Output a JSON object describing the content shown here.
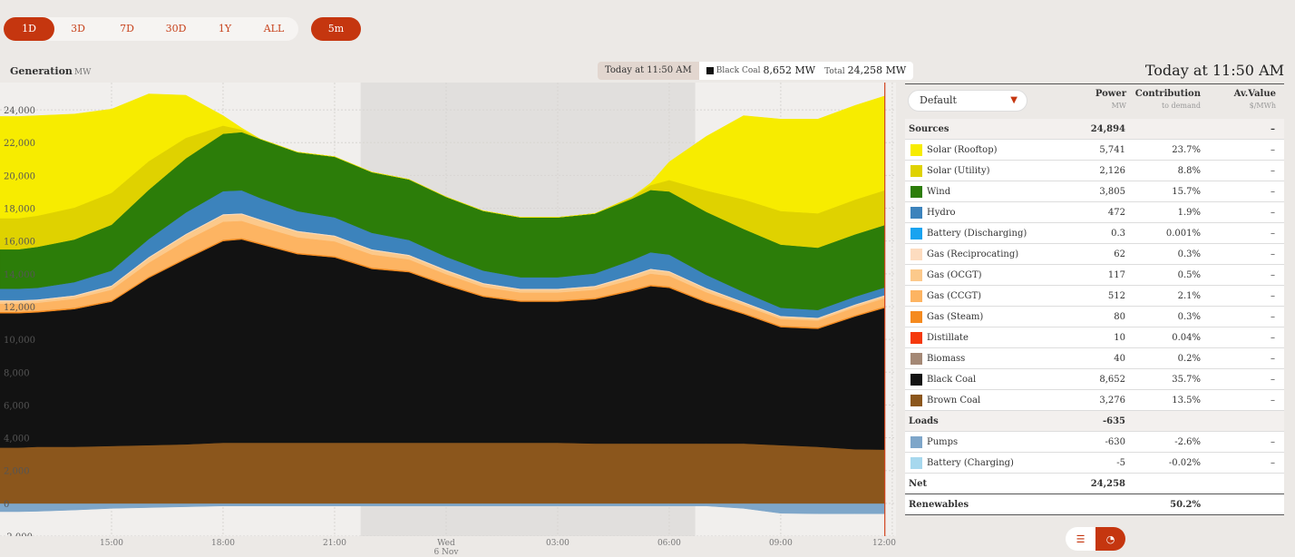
{
  "ranges": [
    "1D",
    "3D",
    "7D",
    "30D",
    "1Y",
    "ALL"
  ],
  "active_range": "1D",
  "interval": "5m",
  "chart_title": "Generation",
  "chart_unit": "MW",
  "hover": {
    "time": "Today at 11:50 AM",
    "fuel": "Black Coal",
    "fuel_value": "8,652 MW",
    "total_label": "Total",
    "total_value": "24,258 MW"
  },
  "chart_data": {
    "type": "area",
    "stacked": true,
    "ylim": [
      -2000,
      25000
    ],
    "y_ticks": [
      -2000,
      0,
      2000,
      4000,
      6000,
      8000,
      10000,
      12000,
      14000,
      16000,
      18000,
      20000,
      22000,
      24000
    ],
    "y_tick_labels": [
      "-2,000",
      "0",
      "2,000",
      "4,000",
      "6,000",
      "8,000",
      "10,000",
      "12,000",
      "14,000",
      "16,000",
      "18,000",
      "20,000",
      "22,000",
      "24,000"
    ],
    "x_hours": [
      12.0,
      12.5,
      13.0,
      14.0,
      15.0,
      16.0,
      17.0,
      18.0,
      18.5,
      19.0,
      20.0,
      21.0,
      22.0,
      23.0,
      24.0,
      25.0,
      26.0,
      27.0,
      28.0,
      29.0,
      29.5,
      30.0,
      31.0,
      32.0,
      33.0,
      34.0,
      35.0,
      35.8
    ],
    "x_tick_hours": [
      15,
      18,
      21,
      24,
      27,
      30,
      33,
      36
    ],
    "x_tick_labels": [
      "15:00",
      "18:00",
      "21:00",
      "Wed",
      "03:00",
      "06:00",
      "09:00",
      "12:00"
    ],
    "x_tick_sublabels": [
      "",
      "",
      "",
      "6 Nov",
      "",
      "",
      "",
      ""
    ],
    "shaded_night": [
      21.7,
      30.7
    ],
    "cursor_hour": 35.8,
    "series": [
      {
        "name": "Battery (Charging)",
        "color": "#a7d8ee",
        "values": [
          -5,
          -5,
          -5,
          -5,
          -5,
          -5,
          -5,
          -5,
          -5,
          -5,
          -5,
          -5,
          -5,
          -5,
          -5,
          -5,
          -5,
          -5,
          -5,
          -5,
          -5,
          -5,
          -5,
          -5,
          -5,
          -5,
          -5,
          -5
        ]
      },
      {
        "name": "Pumps",
        "color": "#7ea6c9",
        "values": [
          -500,
          -500,
          -480,
          -400,
          -300,
          -250,
          -200,
          -150,
          -150,
          -150,
          -150,
          -150,
          -150,
          -150,
          -150,
          -150,
          -150,
          -150,
          -150,
          -150,
          -150,
          -150,
          -150,
          -300,
          -600,
          -630,
          -630,
          -630
        ]
      },
      {
        "name": "Brown Coal",
        "color": "#8b561c",
        "values": [
          3400,
          3400,
          3450,
          3450,
          3500,
          3550,
          3600,
          3700,
          3700,
          3700,
          3700,
          3700,
          3700,
          3700,
          3700,
          3700,
          3700,
          3700,
          3650,
          3650,
          3650,
          3650,
          3650,
          3650,
          3550,
          3450,
          3300,
          3276
        ]
      },
      {
        "name": "Black Coal",
        "color": "#121212",
        "values": [
          8200,
          8200,
          8200,
          8400,
          8800,
          10200,
          11300,
          12300,
          12400,
          12100,
          11500,
          11300,
          10600,
          10400,
          9600,
          8900,
          8600,
          8600,
          8800,
          9300,
          9600,
          9500,
          8600,
          7900,
          7200,
          7200,
          8100,
          8652
        ]
      },
      {
        "name": "Gas (Steam)",
        "color": "#f58a1f",
        "values": [
          80,
          80,
          80,
          80,
          80,
          80,
          80,
          80,
          80,
          80,
          80,
          80,
          80,
          80,
          80,
          80,
          80,
          80,
          80,
          80,
          80,
          80,
          80,
          80,
          80,
          80,
          80,
          80
        ]
      },
      {
        "name": "Gas (CCGT)",
        "color": "#fdb462",
        "values": [
          500,
          500,
          500,
          550,
          650,
          850,
          1050,
          1100,
          1050,
          1000,
          950,
          900,
          800,
          700,
          600,
          520,
          480,
          480,
          500,
          620,
          680,
          650,
          550,
          450,
          420,
          420,
          480,
          512
        ]
      },
      {
        "name": "Gas (OCGT)",
        "color": "#fcc98b",
        "values": [
          150,
          150,
          150,
          150,
          200,
          280,
          350,
          400,
          400,
          380,
          330,
          300,
          260,
          220,
          200,
          180,
          170,
          170,
          180,
          220,
          240,
          230,
          190,
          150,
          120,
          110,
          115,
          117
        ]
      },
      {
        "name": "Gas (Reciprocating)",
        "color": "#fddcbf",
        "values": [
          62,
          62,
          62,
          62,
          62,
          62,
          62,
          62,
          62,
          62,
          62,
          62,
          62,
          62,
          62,
          62,
          62,
          62,
          62,
          62,
          62,
          62,
          62,
          62,
          62,
          62,
          62,
          62
        ]
      },
      {
        "name": "Hydro",
        "color": "#3c83bc",
        "values": [
          700,
          700,
          700,
          800,
          900,
          1100,
          1300,
          1400,
          1400,
          1300,
          1200,
          1100,
          1000,
          900,
          800,
          750,
          700,
          700,
          750,
          900,
          1000,
          1000,
          800,
          600,
          500,
          470,
          470,
          472
        ]
      },
      {
        "name": "Wind",
        "color": "#2c7d09",
        "values": [
          2400,
          2400,
          2500,
          2600,
          2800,
          3000,
          3300,
          3500,
          3550,
          3600,
          3600,
          3700,
          3700,
          3700,
          3650,
          3650,
          3650,
          3650,
          3650,
          3750,
          3800,
          3850,
          3850,
          3850,
          3850,
          3800,
          3800,
          3805
        ]
      },
      {
        "name": "Solar (Utility)",
        "color": "#dfd200",
        "values": [
          1900,
          1900,
          1900,
          1950,
          1950,
          1750,
          1250,
          500,
          150,
          0,
          0,
          0,
          0,
          0,
          0,
          0,
          0,
          0,
          0,
          100,
          300,
          700,
          1300,
          1800,
          2050,
          2100,
          2120,
          2126
        ]
      },
      {
        "name": "Solar (Rooftop)",
        "color": "#f7ec00",
        "values": [
          6200,
          6200,
          6100,
          5700,
          5100,
          4100,
          2600,
          600,
          100,
          0,
          0,
          0,
          0,
          0,
          0,
          0,
          0,
          0,
          0,
          0,
          120,
          1100,
          3300,
          5100,
          5600,
          5740,
          5741,
          5741
        ]
      }
    ]
  },
  "table": {
    "title": "Today at 11:50 AM",
    "dropdown": "Default",
    "columns": [
      {
        "label": "Power",
        "sub": "MW"
      },
      {
        "label": "Contribution",
        "sub": "to demand"
      },
      {
        "label": "Av.Value",
        "sub": "$/MWh"
      }
    ],
    "sources_label": "Sources",
    "sources_total": "24,894",
    "sources_av": "–",
    "sources": [
      {
        "name": "Solar (Rooftop)",
        "color": "#f7ec00",
        "power": "5,741",
        "contrib": "23.7%",
        "av": "–"
      },
      {
        "name": "Solar (Utility)",
        "color": "#dfd200",
        "power": "2,126",
        "contrib": "8.8%",
        "av": "–"
      },
      {
        "name": "Wind",
        "color": "#2c7d09",
        "power": "3,805",
        "contrib": "15.7%",
        "av": "–"
      },
      {
        "name": "Hydro",
        "color": "#3c83bc",
        "power": "472",
        "contrib": "1.9%",
        "av": "–"
      },
      {
        "name": "Battery (Discharging)",
        "color": "#19a3f0",
        "power": "0.3",
        "contrib": "0.001%",
        "av": "–"
      },
      {
        "name": "Gas (Reciprocating)",
        "color": "#fddcbf",
        "power": "62",
        "contrib": "0.3%",
        "av": "–"
      },
      {
        "name": "Gas (OCGT)",
        "color": "#fcc98b",
        "power": "117",
        "contrib": "0.5%",
        "av": "–"
      },
      {
        "name": "Gas (CCGT)",
        "color": "#fdb462",
        "power": "512",
        "contrib": "2.1%",
        "av": "–"
      },
      {
        "name": "Gas (Steam)",
        "color": "#f58a1f",
        "power": "80",
        "contrib": "0.3%",
        "av": "–"
      },
      {
        "name": "Distillate",
        "color": "#f5390c",
        "power": "10",
        "contrib": "0.04%",
        "av": "–"
      },
      {
        "name": "Biomass",
        "color": "#a48875",
        "power": "40",
        "contrib": "0.2%",
        "av": "–"
      },
      {
        "name": "Black Coal",
        "color": "#121212",
        "power": "8,652",
        "contrib": "35.7%",
        "av": "–"
      },
      {
        "name": "Brown Coal",
        "color": "#8b561c",
        "power": "3,276",
        "contrib": "13.5%",
        "av": "–"
      }
    ],
    "loads_label": "Loads",
    "loads_total": "-635",
    "loads": [
      {
        "name": "Pumps",
        "color": "#7ea6c9",
        "power": "-630",
        "contrib": "-2.6%",
        "av": "–"
      },
      {
        "name": "Battery (Charging)",
        "color": "#a7d8ee",
        "power": "-5",
        "contrib": "-0.02%",
        "av": "–"
      }
    ],
    "net_label": "Net",
    "net_total": "24,258",
    "renewables_label": "Renewables",
    "renewables_value": "50.2%"
  },
  "view_toggle": {
    "left_icon": "bar-chart-icon",
    "right_icon": "pie-chart-icon",
    "active": "right"
  }
}
